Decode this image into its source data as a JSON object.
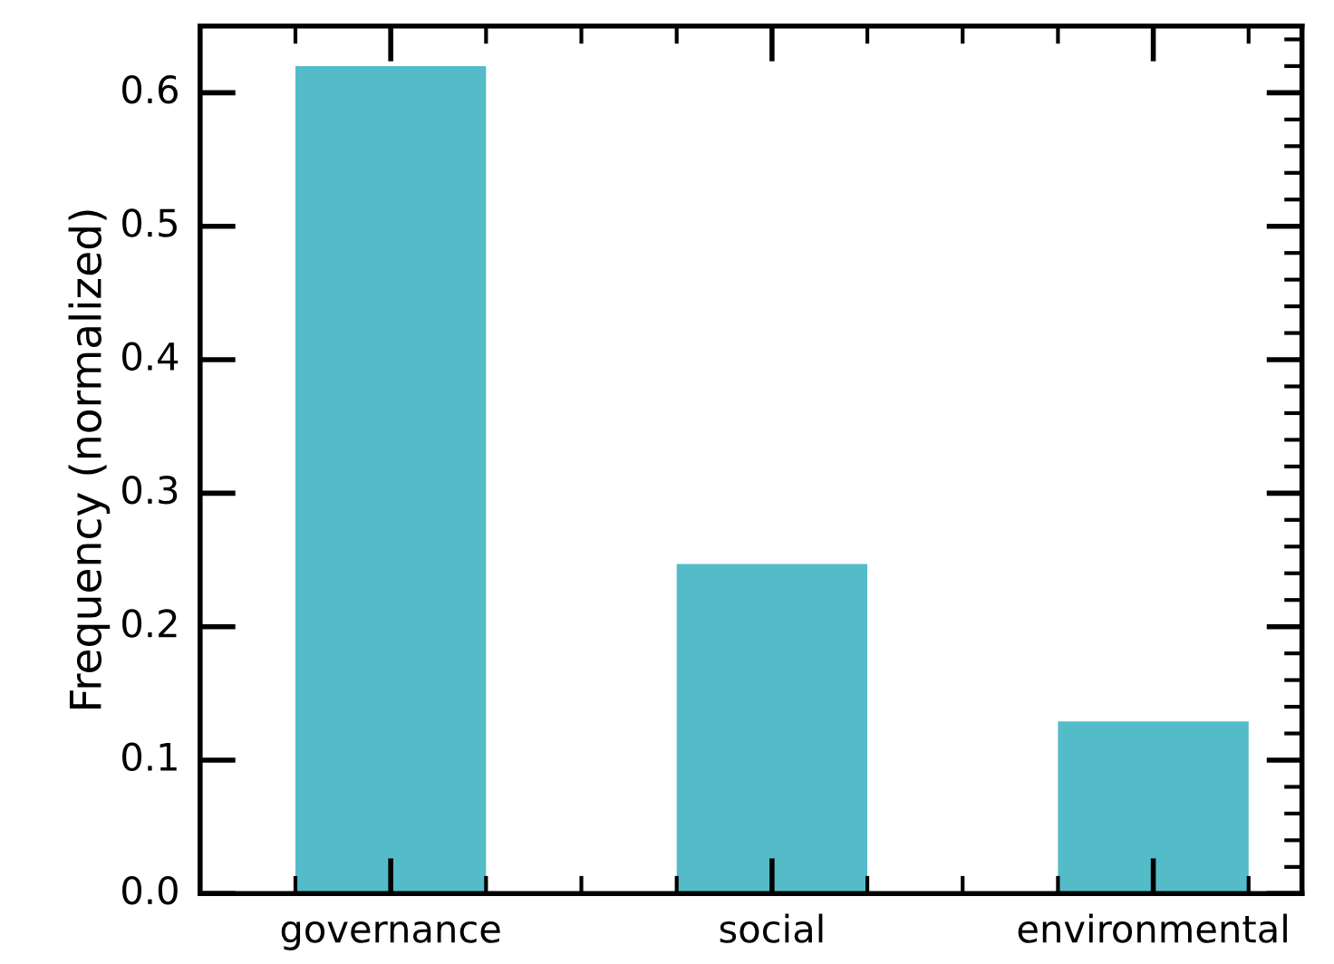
{
  "chart_data": {
    "type": "bar",
    "ylabel": "Frequency (normalized)",
    "categories": [
      "governance",
      "social",
      "environmental"
    ],
    "values": [
      0.62,
      0.247,
      0.129
    ],
    "color": "#53bcc8",
    "ylim": [
      0,
      0.65
    ],
    "yticks": [
      {
        "value": 0,
        "label": "0.0"
      },
      {
        "value": 0.02,
        "label": null
      },
      {
        "value": 0.04,
        "label": null
      },
      {
        "value": 0.06,
        "label": null
      },
      {
        "value": 0.08,
        "label": null
      },
      0.1,
      {
        "value": 0.12,
        "label": null
      },
      {
        "value": 0.14,
        "label": null
      },
      {
        "value": 0.16,
        "label": null
      },
      {
        "value": 0.18,
        "label": null
      },
      0.2,
      {
        "value": 0.22,
        "label": null
      },
      {
        "value": 0.24,
        "label": null
      },
      {
        "value": 0.26,
        "label": null
      },
      {
        "value": 0.28,
        "label": null
      },
      0.3,
      {
        "value": 0.32,
        "label": null
      },
      {
        "value": 0.34,
        "label": null
      },
      {
        "value": 0.36,
        "label": null
      },
      {
        "value": 0.38,
        "label": null
      },
      0.4,
      {
        "value": 0.42,
        "label": null
      },
      {
        "value": 0.44,
        "label": null
      },
      {
        "value": 0.46,
        "label": null
      },
      {
        "value": 0.48,
        "label": null
      },
      0.5,
      {
        "value": 0.52,
        "label": null
      },
      {
        "value": 0.54,
        "label": null
      },
      {
        "value": 0.56,
        "label": null
      },
      {
        "value": 0.58,
        "label": null
      },
      0.6,
      {
        "value": 0.62,
        "label": null
      },
      {
        "value": 0.64,
        "label": null
      }
    ],
    "grid": false,
    "legend": false
  }
}
